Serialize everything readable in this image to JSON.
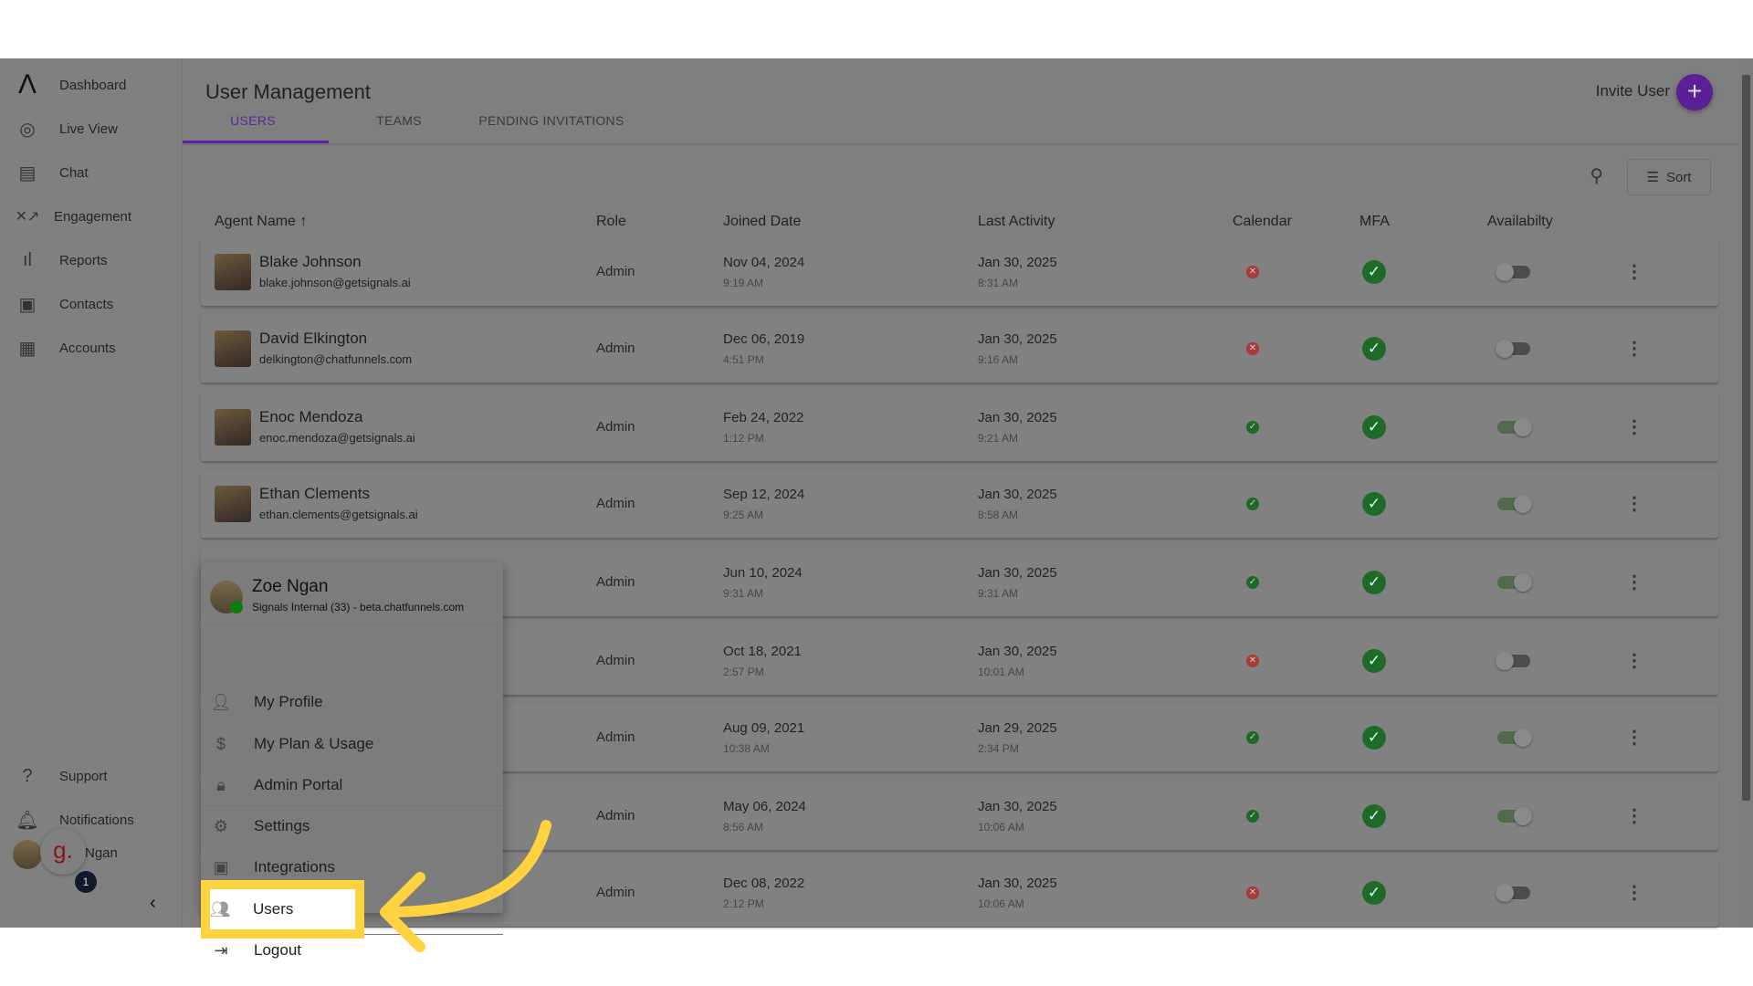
{
  "sidebar": {
    "items": [
      {
        "label": "Dashboard",
        "icon": "logo-icon"
      },
      {
        "label": "Live View",
        "icon": "live-view-icon"
      },
      {
        "label": "Chat",
        "icon": "chat-icon"
      },
      {
        "label": "Engagement",
        "icon": "engagement-icon"
      },
      {
        "label": "Reports",
        "icon": "bar-chart-icon"
      },
      {
        "label": "Contacts",
        "icon": "contacts-icon"
      },
      {
        "label": "Accounts",
        "icon": "building-icon"
      }
    ],
    "support": "Support",
    "notifications": "Notifications",
    "user_name": "Ngan",
    "badge": "1",
    "brand_letter": "g."
  },
  "header": {
    "title": "User Management",
    "tabs": [
      "USERS",
      "TEAMS",
      "PENDING INVITATIONS"
    ],
    "active_tab": "USERS",
    "invite_label": "Invite User",
    "sort_label": "Sort"
  },
  "table": {
    "columns": [
      "Agent Name",
      "Role",
      "Joined Date",
      "Last Activity",
      "Calendar",
      "MFA",
      "Availabilty"
    ],
    "rows": [
      {
        "name": "Blake Johnson",
        "email": "blake.johnson@getsignals.ai",
        "role": "Admin",
        "joined": "Nov 04, 2024",
        "joined_time": "9:19 AM",
        "last": "Jan 30, 2025",
        "last_time": "8:31 AM",
        "calendar": false,
        "mfa": true,
        "available": false
      },
      {
        "name": "David Elkington",
        "email": "delkington@chatfunnels.com",
        "role": "Admin",
        "joined": "Dec 06, 2019",
        "joined_time": "4:51 PM",
        "last": "Jan 30, 2025",
        "last_time": "9:16 AM",
        "calendar": false,
        "mfa": true,
        "available": false
      },
      {
        "name": "Enoc Mendoza",
        "email": "enoc.mendoza@getsignals.ai",
        "role": "Admin",
        "joined": "Feb 24, 2022",
        "joined_time": "1:12 PM",
        "last": "Jan 30, 2025",
        "last_time": "9:21 AM",
        "calendar": true,
        "mfa": true,
        "available": true
      },
      {
        "name": "Ethan Clements",
        "email": "ethan.clements@getsignals.ai",
        "role": "Admin",
        "joined": "Sep 12, 2024",
        "joined_time": "9:25 AM",
        "last": "Jan 30, 2025",
        "last_time": "8:58 AM",
        "calendar": true,
        "mfa": true,
        "available": true
      },
      {
        "role": "Admin",
        "joined": "Jun 10, 2024",
        "joined_time": "9:31 AM",
        "last": "Jan 30, 2025",
        "last_time": "9:31 AM",
        "calendar": true,
        "mfa": true,
        "available": true
      },
      {
        "role": "Admin",
        "joined": "Oct 18, 2021",
        "joined_time": "2:57 PM",
        "last": "Jan 30, 2025",
        "last_time": "10:01 AM",
        "calendar": false,
        "mfa": true,
        "available": false
      },
      {
        "role": "Admin",
        "joined": "Aug 09, 2021",
        "joined_time": "10:38 AM",
        "last": "Jan 29, 2025",
        "last_time": "2:34 PM",
        "calendar": true,
        "mfa": true,
        "available": true
      },
      {
        "role": "Admin",
        "joined": "May 06, 2024",
        "joined_time": "8:56 AM",
        "last": "Jan 30, 2025",
        "last_time": "10:06 AM",
        "calendar": true,
        "mfa": true,
        "available": true
      },
      {
        "role": "Admin",
        "joined": "Dec 08, 2022",
        "joined_time": "2:12 PM",
        "last": "Jan 30, 2025",
        "last_time": "10:06 AM",
        "calendar": false,
        "mfa": true,
        "available": false
      }
    ]
  },
  "menu": {
    "name": "Zoe Ngan",
    "subtitle": "Signals Internal (33) - beta.chatfunnels.com",
    "items": [
      {
        "label": "My Profile",
        "icon": "person-icon"
      },
      {
        "label": "My Plan & Usage",
        "icon": "dollar-icon"
      },
      {
        "label": "Admin Portal",
        "icon": "lock-icon"
      },
      {
        "label": "Settings",
        "icon": "gear-icon"
      },
      {
        "label": "Integrations",
        "icon": "chip-icon"
      },
      {
        "label": "Users",
        "icon": "users-icon"
      },
      {
        "label": "Logout",
        "icon": "logout-icon"
      }
    ],
    "highlighted": "Users"
  },
  "colors": {
    "accent": "#5b1f97",
    "highlight": "#ffd23f",
    "success": "#1f6a29",
    "error": "#a83a3a"
  }
}
